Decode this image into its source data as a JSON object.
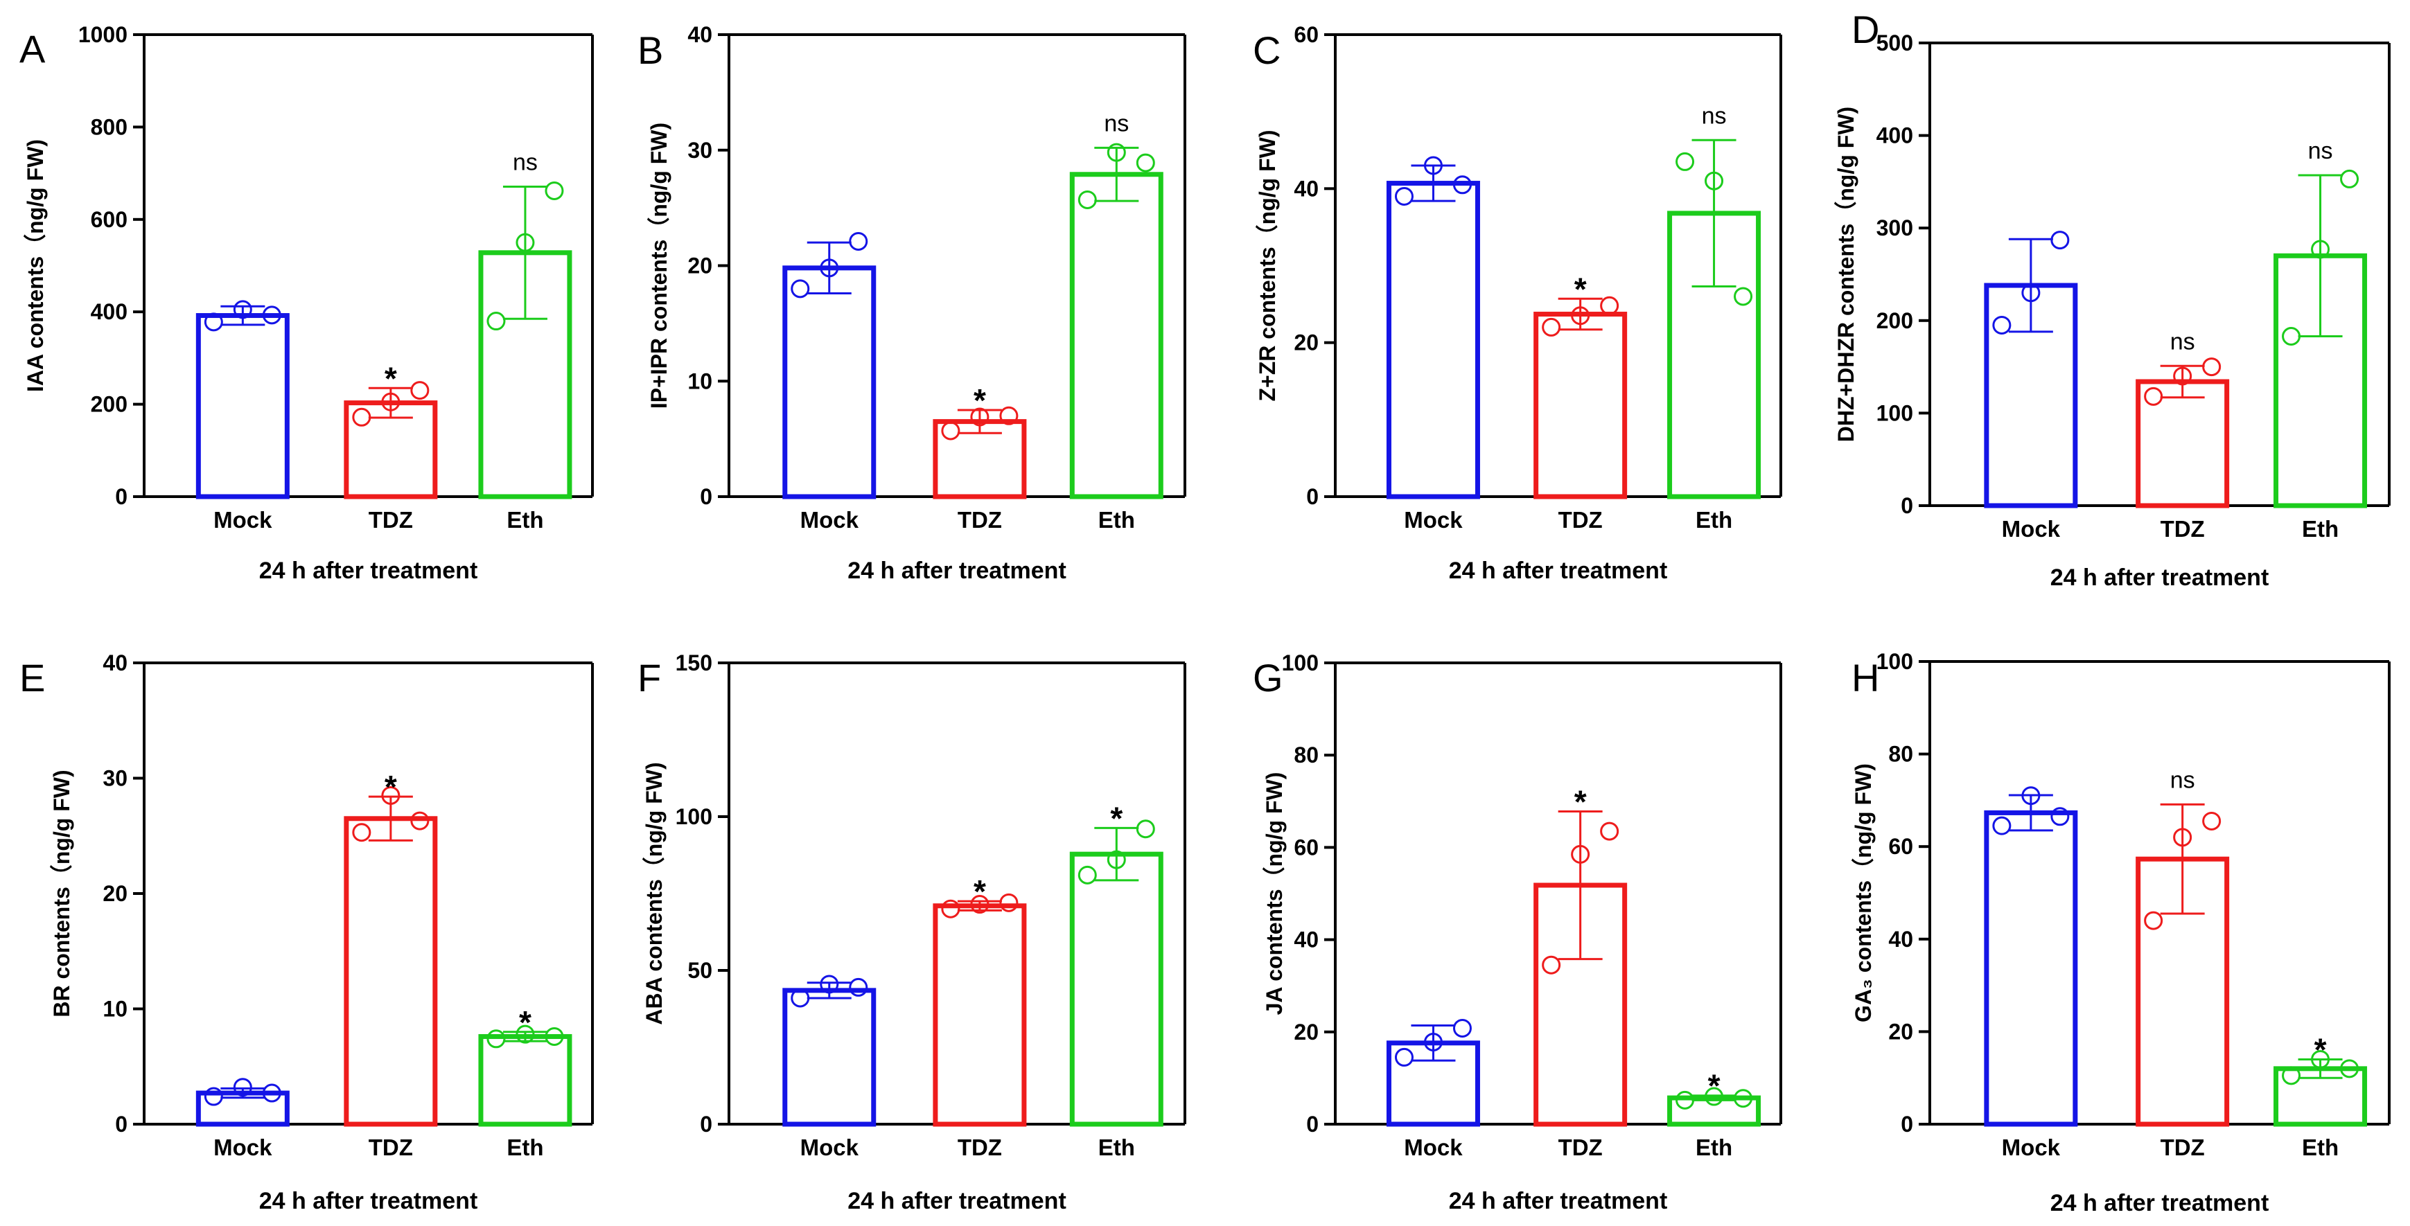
{
  "colors": {
    "Mock": "#1414e6",
    "TDZ": "#ee1c1c",
    "Eth": "#1ccc1c",
    "axis": "#000000"
  },
  "chart_data": [
    {
      "panel": "A",
      "type": "bar",
      "ylabel": "IAA contents（ng/g FW)",
      "xlabel": "24 h after treatment",
      "categories": [
        "Mock",
        "TDZ",
        "Eth"
      ],
      "values": [
        392,
        203,
        528
      ],
      "errors": [
        20,
        32,
        143
      ],
      "points": [
        [
          378,
          405,
          393
        ],
        [
          172,
          205,
          230
        ],
        [
          380,
          550,
          662
        ]
      ],
      "significance": [
        "",
        "*",
        "ns"
      ],
      "ylim": [
        0,
        1000
      ],
      "ticks": [
        0,
        200,
        400,
        600,
        800,
        1000
      ],
      "tick_labels": [
        "0",
        "200",
        "400",
        "600",
        "800",
        "1000"
      ]
    },
    {
      "panel": "B",
      "type": "bar",
      "ylabel": "IP+IPR contents（ng/g FW)",
      "xlabel": "24 h after treatment",
      "categories": [
        "Mock",
        "TDZ",
        "Eth"
      ],
      "values": [
        19.8,
        6.5,
        27.9
      ],
      "errors": [
        2.2,
        1.0,
        2.3
      ],
      "points": [
        [
          18.0,
          19.8,
          22.1
        ],
        [
          5.7,
          6.9,
          7.0
        ],
        [
          25.7,
          29.8,
          28.9
        ]
      ],
      "significance": [
        "",
        "*",
        "ns"
      ],
      "ylim": [
        0,
        40
      ],
      "ticks": [
        0,
        10,
        20,
        30,
        40
      ],
      "tick_labels": [
        "0",
        "10",
        "20",
        "30",
        "40"
      ]
    },
    {
      "panel": "C",
      "type": "bar",
      "ylabel": "Z+ZR contents（ng/g FW)",
      "xlabel": "24 h after treatment",
      "categories": [
        "Mock",
        "TDZ",
        "Eth"
      ],
      "values": [
        40.7,
        23.7,
        36.8
      ],
      "errors": [
        2.3,
        2.0,
        9.5
      ],
      "points": [
        [
          39.0,
          43.0,
          40.5
        ],
        [
          22.0,
          23.5,
          24.8
        ],
        [
          43.5,
          41.0,
          26.0
        ]
      ],
      "significance": [
        "",
        "*",
        "ns"
      ],
      "ylim": [
        0,
        60
      ],
      "ticks": [
        0,
        20,
        40,
        60
      ],
      "tick_labels": [
        "0",
        "20",
        "40",
        "60"
      ]
    },
    {
      "panel": "D",
      "type": "bar",
      "ylabel": "DHZ+DHZR contents（ng/g FW)",
      "xlabel": "24 h after treatment",
      "categories": [
        "Mock",
        "TDZ",
        "Eth"
      ],
      "values": [
        238,
        134,
        270
      ],
      "errors": [
        50,
        17,
        87
      ],
      "points": [
        [
          195,
          230,
          287
        ],
        [
          118,
          140,
          150
        ],
        [
          183,
          277,
          353
        ]
      ],
      "significance": [
        "",
        "ns",
        "ns"
      ],
      "ylim": [
        0,
        500
      ],
      "ticks": [
        0,
        100,
        200,
        300,
        400,
        500
      ],
      "tick_labels": [
        "0",
        "100",
        "200",
        "300",
        "400",
        "500"
      ]
    },
    {
      "panel": "E",
      "type": "bar",
      "ylabel": "BR contents（ng/g FW)",
      "xlabel": "24 h after treatment",
      "categories": [
        "Mock",
        "TDZ",
        "Eth"
      ],
      "values": [
        2.7,
        26.5,
        7.6
      ],
      "errors": [
        0.4,
        1.9,
        0.4
      ],
      "points": [
        [
          2.4,
          3.2,
          2.7
        ],
        [
          25.3,
          28.5,
          26.3
        ],
        [
          7.4,
          7.8,
          7.6
        ]
      ],
      "significance": [
        "",
        "*",
        "*"
      ],
      "ylim": [
        0,
        40
      ],
      "ticks": [
        0,
        10,
        20,
        30,
        40
      ],
      "tick_labels": [
        "0",
        "10",
        "20",
        "30",
        "40"
      ]
    },
    {
      "panel": "F",
      "type": "bar",
      "ylabel": "ABA contents（ng/g FW)",
      "xlabel": "24 h after treatment",
      "categories": [
        "Mock",
        "TDZ",
        "Eth"
      ],
      "values": [
        43.5,
        71.0,
        87.8
      ],
      "errors": [
        2.5,
        1.5,
        8.5
      ],
      "points": [
        [
          41.0,
          45.5,
          44.5
        ],
        [
          70.0,
          71.5,
          72.0
        ],
        [
          81.0,
          86.0,
          96.0
        ]
      ],
      "significance": [
        "",
        "*",
        "*"
      ],
      "ylim": [
        0,
        150
      ],
      "ticks": [
        0,
        50,
        100,
        150
      ],
      "tick_labels": [
        "0",
        "50",
        "100",
        "150"
      ]
    },
    {
      "panel": "G",
      "type": "bar",
      "ylabel": "JA contents（ng/g FW)",
      "xlabel": "24 h after treatment",
      "categories": [
        "Mock",
        "TDZ",
        "Eth"
      ],
      "values": [
        17.6,
        51.8,
        5.7
      ],
      "errors": [
        3.8,
        16.0,
        0.5
      ],
      "points": [
        [
          14.5,
          17.8,
          20.8
        ],
        [
          34.5,
          58.5,
          63.5
        ],
        [
          5.2,
          6.0,
          5.6
        ]
      ],
      "significance": [
        "",
        "*",
        "*"
      ],
      "ylim": [
        0,
        100
      ],
      "ticks": [
        0,
        20,
        40,
        60,
        80,
        100
      ],
      "tick_labels": [
        "0",
        "20",
        "40",
        "60",
        "80",
        "100"
      ]
    },
    {
      "panel": "H",
      "type": "bar",
      "ylabel": "GA₃ contents（ng/g FW)",
      "xlabel": "24 h after treatment",
      "categories": [
        "Mock",
        "TDZ",
        "Eth"
      ],
      "values": [
        67.3,
        57.3,
        12.0
      ],
      "errors": [
        3.8,
        11.8,
        2.0
      ],
      "points": [
        [
          64.5,
          71.0,
          66.5
        ],
        [
          44.0,
          62.0,
          65.5
        ],
        [
          10.5,
          14.0,
          12.0
        ]
      ],
      "significance": [
        "",
        "ns",
        "*"
      ],
      "ylim": [
        0,
        100
      ],
      "ticks": [
        0,
        20,
        40,
        60,
        80,
        100
      ],
      "tick_labels": [
        "0",
        "20",
        "40",
        "60",
        "80",
        "100"
      ]
    }
  ]
}
